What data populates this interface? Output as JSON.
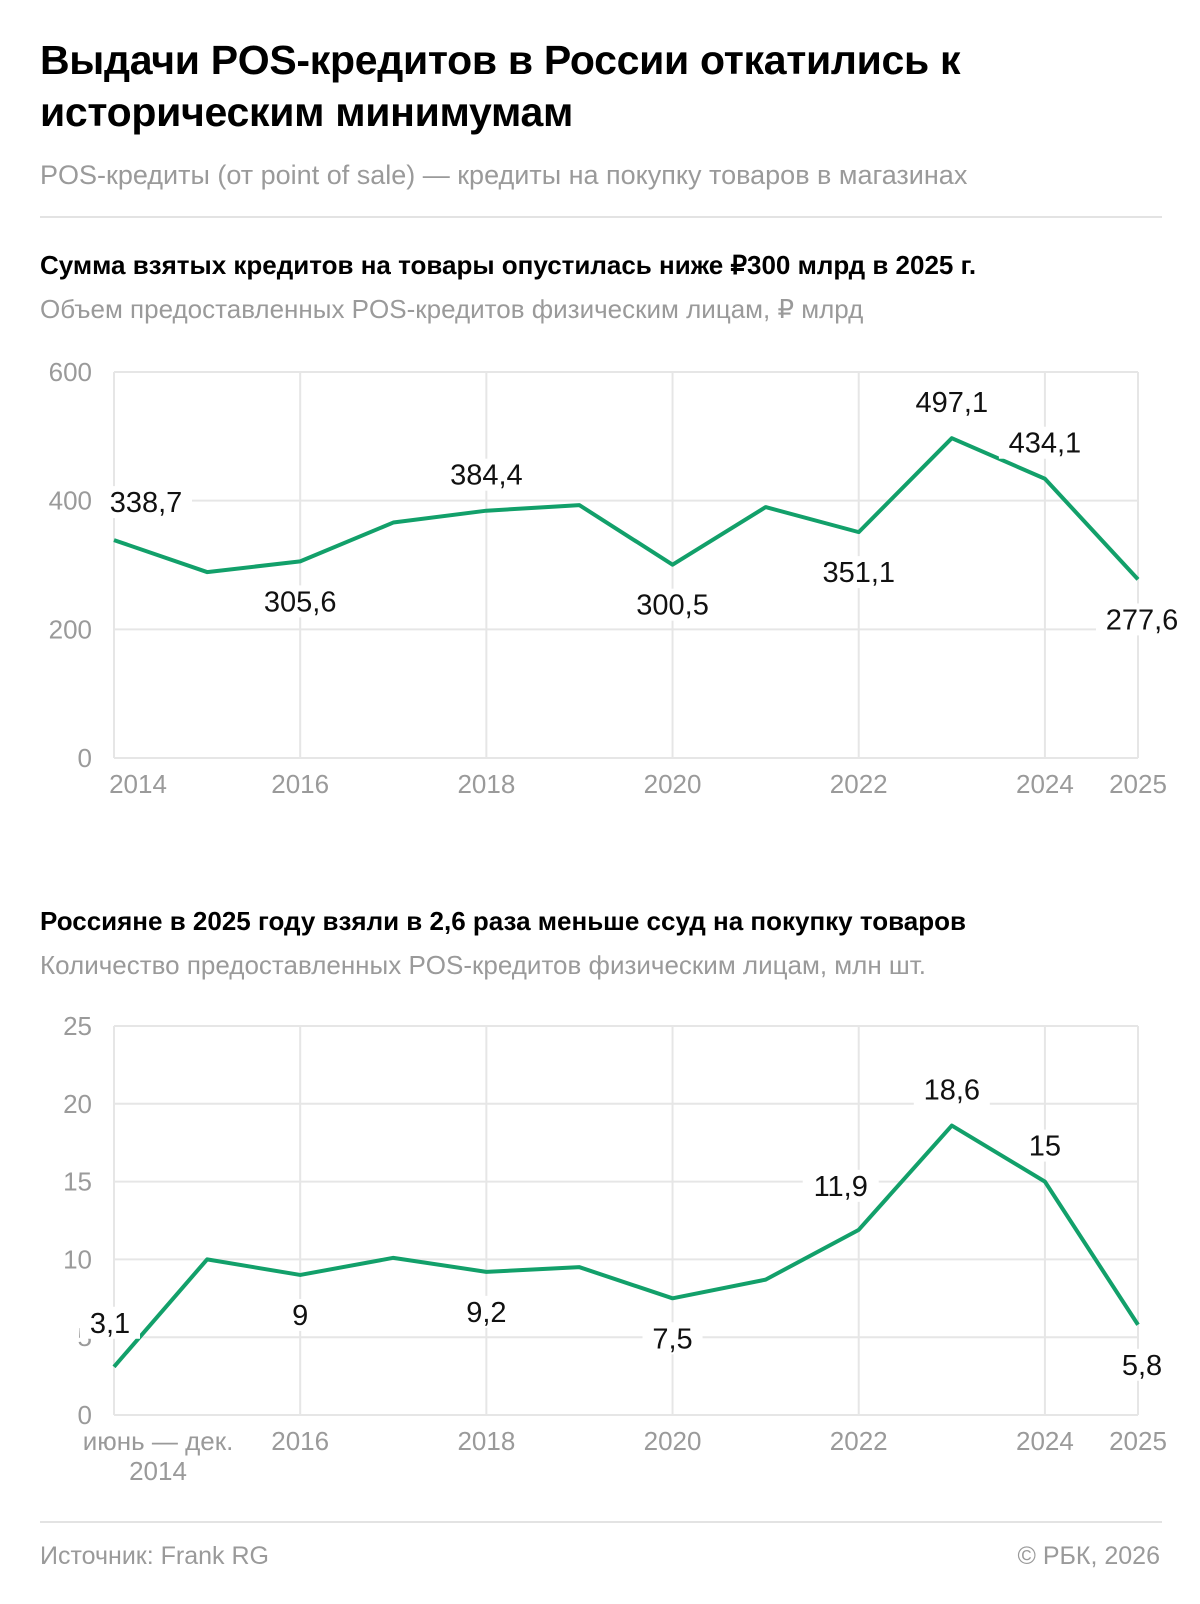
{
  "header": {
    "title": "Выдачи POS-кредитов в России откатились к историческим минимумам",
    "subtitle": "POS-кредиты (от point of sale) — кредиты на покупку товаров в магазинах"
  },
  "colors": {
    "line": "#12a06a",
    "grid": "#e6e6e6",
    "axis_text": "#9a9a9a"
  },
  "chart_data": [
    {
      "type": "line",
      "title": "Сумма взятых кредитов на товары опустилась ниже ₽300 млрд в 2025 г.",
      "subtitle": "Объем предоставленных POS-кредитов физическим лицам, ₽ млрд",
      "x": [
        2014,
        2015,
        2016,
        2017,
        2018,
        2019,
        2020,
        2021,
        2022,
        2023,
        2024,
        2025
      ],
      "values": [
        338.7,
        289,
        305.6,
        366,
        384.4,
        393,
        300.5,
        390,
        351.1,
        497.1,
        434.1,
        277.6
      ],
      "labels": [
        {
          "i": 0,
          "text": "338,7",
          "pos": "above"
        },
        {
          "i": 2,
          "text": "305,6",
          "pos": "below"
        },
        {
          "i": 4,
          "text": "384,4",
          "pos": "above"
        },
        {
          "i": 6,
          "text": "300,5",
          "pos": "below"
        },
        {
          "i": 8,
          "text": "351,1",
          "pos": "below"
        },
        {
          "i": 9,
          "text": "497,1",
          "pos": "above"
        },
        {
          "i": 10,
          "text": "434,1",
          "pos": "above"
        },
        {
          "i": 11,
          "text": "277,6",
          "pos": "below"
        }
      ],
      "ylim": [
        0,
        600
      ],
      "yticks": [
        {
          "v": 0,
          "t": "0"
        },
        {
          "v": 200,
          "t": "200"
        },
        {
          "v": 400,
          "t": "400"
        },
        {
          "v": 600,
          "t": "600"
        }
      ],
      "xticks": [
        {
          "i": 0,
          "t": "2014"
        },
        {
          "i": 2,
          "t": "2016"
        },
        {
          "i": 4,
          "t": "2018"
        },
        {
          "i": 6,
          "t": "2020"
        },
        {
          "i": 8,
          "t": "2022"
        },
        {
          "i": 10,
          "t": "2024"
        },
        {
          "i": 11,
          "t": "2025"
        }
      ],
      "grid": true
    },
    {
      "type": "line",
      "title": "Россияне в 2025 году взяли в 2,6 раза меньше ссуд на покупку товаров",
      "subtitle": "Количество предоставленных POS-кредитов физическим лицам, млн шт.",
      "x": [
        "июнь — дек. 2014",
        2015,
        2016,
        2017,
        2018,
        2019,
        2020,
        2021,
        2022,
        2023,
        2024,
        2025
      ],
      "values": [
        3.1,
        10.0,
        9,
        10.1,
        9.2,
        9.5,
        7.5,
        8.7,
        11.9,
        18.6,
        15,
        5.8
      ],
      "labels": [
        {
          "i": 0,
          "text": "3,1",
          "pos": "above"
        },
        {
          "i": 2,
          "text": "9",
          "pos": "below"
        },
        {
          "i": 4,
          "text": "9,2",
          "pos": "below"
        },
        {
          "i": 6,
          "text": "7,5",
          "pos": "below"
        },
        {
          "i": 8,
          "text": "11,9",
          "pos": "aboveleft"
        },
        {
          "i": 9,
          "text": "18,6",
          "pos": "above"
        },
        {
          "i": 10,
          "text": "15",
          "pos": "above"
        },
        {
          "i": 11,
          "text": "5,8",
          "pos": "below"
        }
      ],
      "ylim": [
        0,
        25
      ],
      "yticks": [
        {
          "v": 0,
          "t": "0"
        },
        {
          "v": 5,
          "t": "5"
        },
        {
          "v": 10,
          "t": "10"
        },
        {
          "v": 15,
          "t": "15"
        },
        {
          "v": 20,
          "t": "20"
        },
        {
          "v": 25,
          "t": "25"
        }
      ],
      "xticks": [
        {
          "i": 0,
          "t": "июнь — дек.",
          "t2": "2014"
        },
        {
          "i": 2,
          "t": "2016"
        },
        {
          "i": 4,
          "t": "2018"
        },
        {
          "i": 6,
          "t": "2020"
        },
        {
          "i": 8,
          "t": "2022"
        },
        {
          "i": 10,
          "t": "2024"
        },
        {
          "i": 11,
          "t": "2025"
        }
      ],
      "grid": true
    }
  ],
  "footer": {
    "source": "Источник: Frank RG",
    "copyright": "© РБК, 2026"
  }
}
